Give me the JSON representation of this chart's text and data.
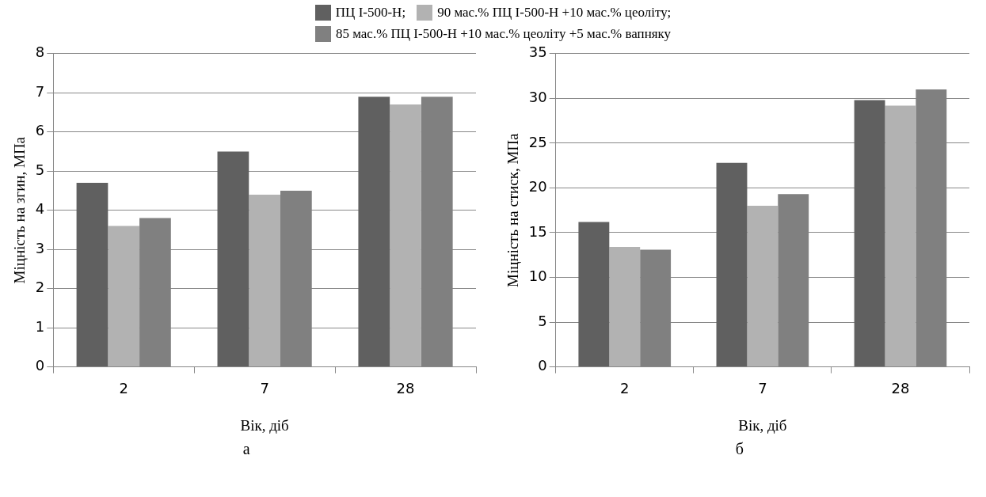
{
  "chart_data": [
    {
      "type": "bar",
      "categories": [
        "2",
        "7",
        "28"
      ],
      "xlabel": "Вік, діб",
      "ylabel": "Міцність на згин, МПа",
      "ylim": [
        0,
        8
      ],
      "yticks": [
        0,
        1,
        2,
        3,
        4,
        5,
        6,
        7,
        8
      ],
      "grid": "y",
      "legend": "top",
      "series": [
        {
          "name": "ПЦ I-500-Н;",
          "color": "#606060",
          "values": [
            4.7,
            5.5,
            6.9
          ]
        },
        {
          "name": "90 мас.% ПЦ I-500-Н +10 мас.% цеоліту;",
          "color": "#b2b2b2",
          "values": [
            3.6,
            4.4,
            6.7
          ]
        },
        {
          "name": "85 мас.% ПЦ I-500-Н +10 мас.% цеоліту +5 мас.% вапняку",
          "color": "#808080",
          "values": [
            3.8,
            4.5,
            6.9
          ]
        }
      ],
      "annotations": [
        "а"
      ]
    },
    {
      "type": "bar",
      "categories": [
        "2",
        "7",
        "28"
      ],
      "xlabel": "Вік, діб",
      "ylabel": "Міцність на стиск, МПа",
      "ylim": [
        0,
        35
      ],
      "yticks": [
        0,
        5,
        10,
        15,
        20,
        25,
        30,
        35
      ],
      "grid": "y",
      "series": [
        {
          "color": "#606060",
          "values": [
            16.2,
            22.8,
            29.8
          ]
        },
        {
          "color": "#b2b2b2",
          "values": [
            13.4,
            18.0,
            29.2
          ]
        },
        {
          "color": "#808080",
          "values": [
            13.1,
            19.3,
            31.0
          ]
        }
      ],
      "annotations": [
        "б"
      ]
    }
  ]
}
